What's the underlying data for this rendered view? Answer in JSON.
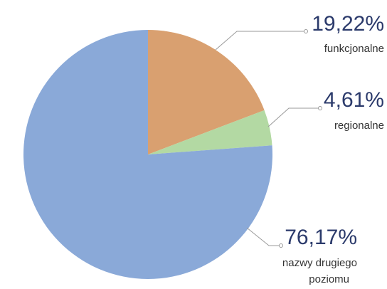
{
  "chart_data": {
    "type": "pie",
    "slices": [
      {
        "label": "funkcjonalne",
        "value": 19.22,
        "value_text": "19,22%",
        "color": "#d9a070"
      },
      {
        "label": "regionalne",
        "value": 4.61,
        "value_text": "4,61%",
        "color": "#b3d9a3"
      },
      {
        "label": "nazwy drugiego poziomu",
        "label_lines": [
          "nazwy drugiego",
          "poziomu"
        ],
        "value": 76.17,
        "value_text": "76,17%",
        "color": "#8aa9d8"
      }
    ],
    "start_angle": "12 o'clock",
    "direction": "clockwise",
    "legend": "none (direct labels)"
  }
}
